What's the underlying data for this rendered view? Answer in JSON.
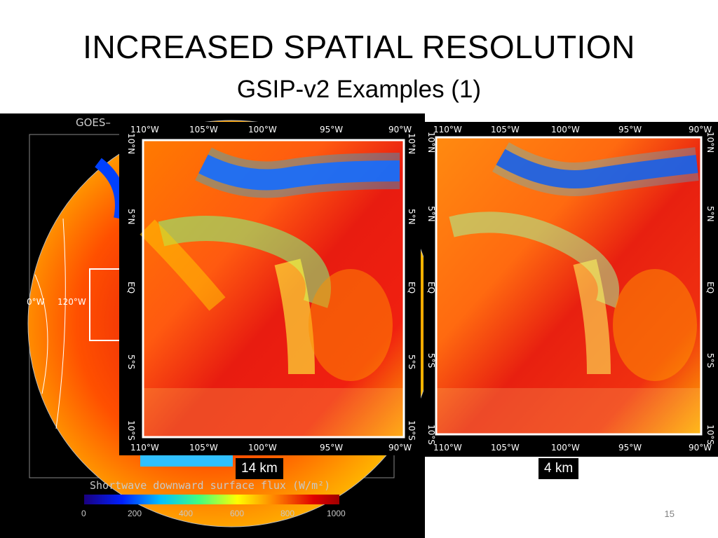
{
  "slide": {
    "title": "INCREASED SPATIAL RESOLUTION",
    "subtitle": "GSIP-v2 Examples (1)",
    "page_number": "15"
  },
  "background_map": {
    "header": "GOES–",
    "lon_labels": [
      "0°W",
      "120°W"
    ],
    "colorbar_title": "Shortwave downward surface flux (W/m²)",
    "colorbar_ticks": [
      "0",
      "200",
      "400",
      "600",
      "800",
      "1000"
    ]
  },
  "map_axes": {
    "lon_top": [
      "110°W",
      "105°W",
      "100°W",
      "95°W",
      "90°W"
    ],
    "lon_bottom": [
      "110°W",
      "105°W",
      "100°W",
      "95°W",
      "90°W"
    ],
    "lat": [
      "10°N",
      "5°N",
      "EQ",
      "5°S",
      "10°S"
    ]
  },
  "panels": [
    {
      "label": "14 km"
    },
    {
      "label": "4 km"
    }
  ],
  "colors": {
    "colorbar": [
      "#1a0080",
      "#0020ff",
      "#00c0ff",
      "#40ff80",
      "#ffff00",
      "#ff8000",
      "#e00000",
      "#a00000"
    ],
    "frame": "#ffffff"
  }
}
